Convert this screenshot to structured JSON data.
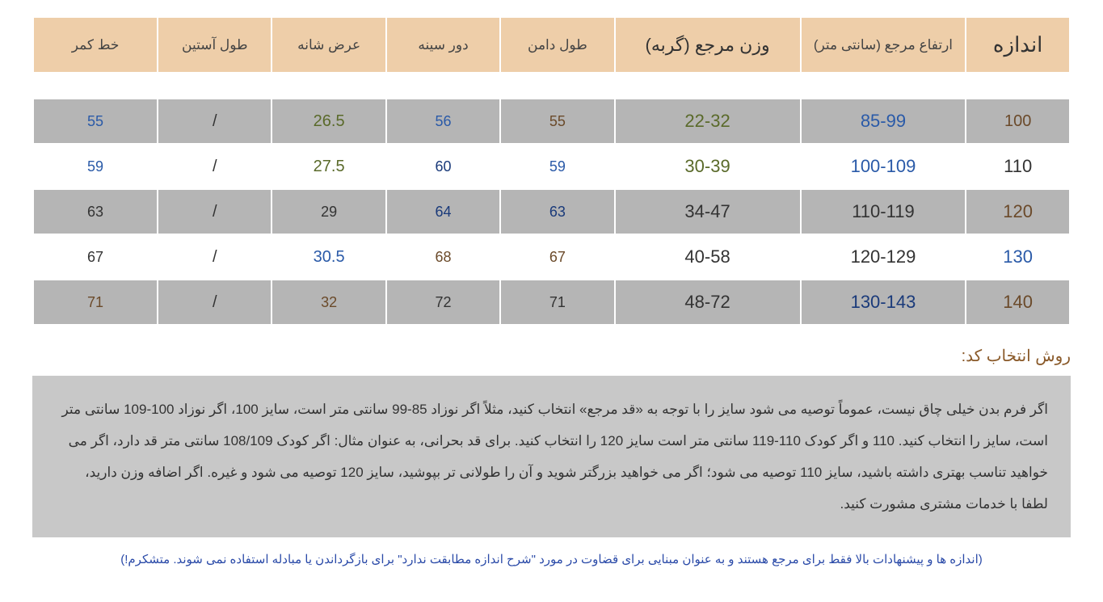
{
  "table": {
    "headers": [
      {
        "label": "اندازه",
        "class": "big"
      },
      {
        "label": "ارتفاع مرجع (سانتی متر)",
        "class": ""
      },
      {
        "label": "وزن مرجع (گربه)",
        "class": "med"
      },
      {
        "label": "طول دامن",
        "class": ""
      },
      {
        "label": "دور سینه",
        "class": ""
      },
      {
        "label": "عرض شانه",
        "class": ""
      },
      {
        "label": "طول آستین",
        "class": ""
      },
      {
        "label": "خط کمر",
        "class": ""
      }
    ],
    "column_widths": [
      "10%",
      "16%",
      "18%",
      "11%",
      "11%",
      "11%",
      "11%",
      "12%"
    ],
    "header_bg": "#eecea9",
    "row_odd_bg": "#b5b5b5",
    "row_even_bg": "#ffffff",
    "rows": [
      {
        "stripe": "odd",
        "cells": [
          {
            "v": "100",
            "c": "c-brown",
            "fs": 20
          },
          {
            "v": "85-99",
            "c": "c-blue",
            "fs": 22
          },
          {
            "v": "22-32",
            "c": "c-olive",
            "fs": 22
          },
          {
            "v": "55",
            "c": "c-brown",
            "fs": 18
          },
          {
            "v": "56",
            "c": "c-blue",
            "fs": 18
          },
          {
            "v": "26.5",
            "c": "c-olive",
            "fs": 20
          },
          {
            "v": "/",
            "c": "c-dark",
            "fs": 20
          },
          {
            "v": "55",
            "c": "c-blue",
            "fs": 18
          }
        ]
      },
      {
        "stripe": "even",
        "cells": [
          {
            "v": "110",
            "c": "c-dark",
            "fs": 22
          },
          {
            "v": "100-109",
            "c": "c-blue",
            "fs": 22
          },
          {
            "v": "30-39",
            "c": "c-olive",
            "fs": 22
          },
          {
            "v": "59",
            "c": "c-blue",
            "fs": 18
          },
          {
            "v": "60",
            "c": "c-dblue",
            "fs": 18
          },
          {
            "v": "27.5",
            "c": "c-olive",
            "fs": 20
          },
          {
            "v": "/",
            "c": "c-dark",
            "fs": 20
          },
          {
            "v": "59",
            "c": "c-blue",
            "fs": 18
          }
        ]
      },
      {
        "stripe": "odd",
        "cells": [
          {
            "v": "120",
            "c": "c-brown",
            "fs": 22
          },
          {
            "v": "110-119",
            "c": "c-dark",
            "fs": 22
          },
          {
            "v": "34-47",
            "c": "c-dark",
            "fs": 22
          },
          {
            "v": "63",
            "c": "c-dblue",
            "fs": 18
          },
          {
            "v": "64",
            "c": "c-dblue",
            "fs": 18
          },
          {
            "v": "29",
            "c": "c-dark",
            "fs": 18
          },
          {
            "v": "/",
            "c": "c-dark",
            "fs": 20
          },
          {
            "v": "63",
            "c": "c-dark",
            "fs": 18
          }
        ]
      },
      {
        "stripe": "even",
        "cells": [
          {
            "v": "130",
            "c": "c-blue",
            "fs": 22
          },
          {
            "v": "120-129",
            "c": "c-dark",
            "fs": 22
          },
          {
            "v": "40-58",
            "c": "c-dark",
            "fs": 22
          },
          {
            "v": "67",
            "c": "c-brown",
            "fs": 18
          },
          {
            "v": "68",
            "c": "c-brown",
            "fs": 18
          },
          {
            "v": "30.5",
            "c": "c-blue",
            "fs": 20
          },
          {
            "v": "/",
            "c": "c-dark",
            "fs": 20
          },
          {
            "v": "67",
            "c": "c-dark",
            "fs": 18
          }
        ]
      },
      {
        "stripe": "odd",
        "cells": [
          {
            "v": "140",
            "c": "c-brown",
            "fs": 22
          },
          {
            "v": "130-143",
            "c": "c-dblue",
            "fs": 22
          },
          {
            "v": "48-72",
            "c": "c-dark",
            "fs": 22
          },
          {
            "v": "71",
            "c": "c-dark",
            "fs": 18
          },
          {
            "v": "72",
            "c": "c-dark",
            "fs": 18
          },
          {
            "v": "32",
            "c": "c-brown",
            "fs": 18
          },
          {
            "v": "/",
            "c": "c-dark",
            "fs": 20
          },
          {
            "v": "71",
            "c": "c-brown",
            "fs": 18
          }
        ]
      }
    ]
  },
  "section_title": "روش انتخاب کد:",
  "info_text": "اگر فرم بدن خیلی چاق نیست، عموماً توصیه می شود سایز را با توجه به «قد مرجع» انتخاب کنید، مثلاً اگر نوزاد 85-99 سانتی متر است، سایز 100، اگر نوزاد 100-109 سانتی متر است، سایز را انتخاب کنید. 110 و اگر کودک 110-119 سانتی متر است سایز 120 را انتخاب کنید. برای قد بحرانی، به عنوان مثال: اگر کودک 108/109 سانتی متر قد دارد، اگر می خواهید تناسب بهتری داشته باشید، سایز 110 توصیه می شود؛ اگر می خواهید بزرگتر شوید و آن را طولانی تر بپوشید، سایز 120 توصیه می شود و غیره. اگر اضافه وزن دارید، لطفا با خدمات مشتری مشورت کنید.",
  "disclaimer": "(اندازه ها و پیشنهادات بالا فقط برای مرجع هستند و به عنوان مبنایی برای قضاوت در مورد \"شرح اندازه مطابقت ندارد\" برای بازگرداندن یا مبادله استفاده نمی شوند. متشکرم!)",
  "colors": {
    "header_bg": "#eecea9",
    "odd_bg": "#b5b5b5",
    "even_bg": "#ffffff",
    "info_bg": "#c8c8c8",
    "title_color": "#8a5a2a",
    "disclaimer_color": "#2a4aa8"
  }
}
